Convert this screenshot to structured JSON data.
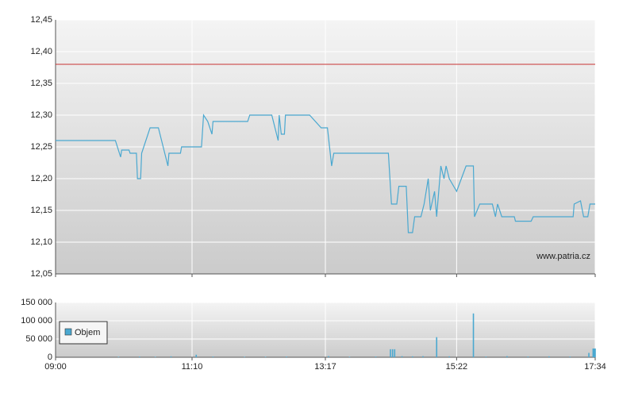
{
  "chart_data": [
    {
      "type": "line",
      "watermark": "www.patria.cz",
      "x": [
        "09:00",
        "09:57",
        "10:02",
        "10:03",
        "10:10",
        "10:11",
        "10:17",
        "10:18",
        "10:21",
        "10:22",
        "10:30",
        "10:38",
        "10:41",
        "10:47",
        "10:48",
        "10:59",
        "11:00",
        "11:19",
        "11:21",
        "11:25",
        "11:29",
        "11:30",
        "12:03",
        "12:05",
        "12:26",
        "12:32",
        "12:33",
        "12:35",
        "12:38",
        "12:39",
        "13:02",
        "13:13",
        "13:19",
        "13:23",
        "13:25",
        "14:17",
        "14:20",
        "14:25",
        "14:27",
        "14:34",
        "14:36",
        "14:40",
        "14:42",
        "14:48",
        "14:51",
        "14:55",
        "14:57",
        "15:01",
        "15:03",
        "15:07",
        "15:10",
        "15:12",
        "15:15",
        "15:22",
        "15:31",
        "15:38",
        "15:39",
        "15:44",
        "15:56",
        "15:59",
        "16:01",
        "16:05",
        "16:17",
        "16:18",
        "16:33",
        "16:35",
        "17:13",
        "17:14",
        "17:20",
        "17:23",
        "17:27",
        "17:29",
        "17:34"
      ],
      "values": [
        12.26,
        12.26,
        12.234,
        12.245,
        12.245,
        12.24,
        12.24,
        12.2,
        12.2,
        12.24,
        12.28,
        12.28,
        12.26,
        12.22,
        12.24,
        12.24,
        12.25,
        12.25,
        12.3,
        12.29,
        12.27,
        12.29,
        12.29,
        12.3,
        12.3,
        12.26,
        12.3,
        12.27,
        12.27,
        12.3,
        12.3,
        12.28,
        12.28,
        12.22,
        12.24,
        12.24,
        12.16,
        12.16,
        12.188,
        12.188,
        12.115,
        12.115,
        12.14,
        12.14,
        12.16,
        12.2,
        12.15,
        12.18,
        12.14,
        12.22,
        12.2,
        12.22,
        12.2,
        12.18,
        12.22,
        12.22,
        12.14,
        12.16,
        12.16,
        12.14,
        12.16,
        12.14,
        12.14,
        12.133,
        12.133,
        12.14,
        12.14,
        12.16,
        12.165,
        12.14,
        12.14,
        12.16,
        12.16
      ],
      "color": "#4aa8d0",
      "reference_line": {
        "value": 12.38,
        "color": "#c83232"
      },
      "xlim": [
        "09:00",
        "17:34"
      ],
      "ylim": [
        12.05,
        12.45
      ],
      "yticks": [
        {
          "value": 12.05,
          "label": "12,05"
        },
        {
          "value": 12.1,
          "label": "12,10"
        },
        {
          "value": 12.15,
          "label": "12,15"
        },
        {
          "value": 12.2,
          "label": "12,20"
        },
        {
          "value": 12.25,
          "label": "12,25"
        },
        {
          "value": 12.3,
          "label": "12,30"
        },
        {
          "value": 12.35,
          "label": "12,35"
        },
        {
          "value": 12.4,
          "label": "12,40"
        },
        {
          "value": 12.45,
          "label": "12,45"
        }
      ],
      "grid": true
    },
    {
      "type": "bar",
      "x": [
        "10:00",
        "10:20",
        "10:35",
        "10:50",
        "11:14",
        "11:30",
        "12:00",
        "12:20",
        "12:40",
        "13:20",
        "13:40",
        "14:05",
        "14:19",
        "14:21",
        "14:23",
        "14:30",
        "14:40",
        "14:50",
        "15:03",
        "15:15",
        "15:38",
        "15:50",
        "16:10",
        "16:30",
        "16:50",
        "17:10",
        "17:28",
        "17:32",
        "17:33",
        "17:34"
      ],
      "series": [
        {
          "name": "Objem",
          "color": "#4aa8d0",
          "values": [
            1500,
            2000,
            1500,
            2500,
            7000,
            2000,
            1500,
            1500,
            2000,
            3000,
            1500,
            2000,
            22000,
            22000,
            22000,
            3000,
            2500,
            3000,
            55000,
            2500,
            120000,
            2000,
            3000,
            2000,
            2500,
            2000,
            12000,
            24000,
            24000,
            24000
          ]
        }
      ],
      "xlim": [
        "09:00",
        "17:34"
      ],
      "xticks": [
        "09:00",
        "11:10",
        "13:17",
        "15:22",
        "17:34"
      ],
      "ylim": [
        0,
        150000
      ],
      "yticks": [
        0,
        {
          "value": 50000,
          "label": "50 000"
        },
        {
          "value": 100000,
          "label": "100 000"
        },
        {
          "value": 150000,
          "label": "150 000"
        }
      ],
      "grid": true,
      "legend": "left"
    }
  ]
}
